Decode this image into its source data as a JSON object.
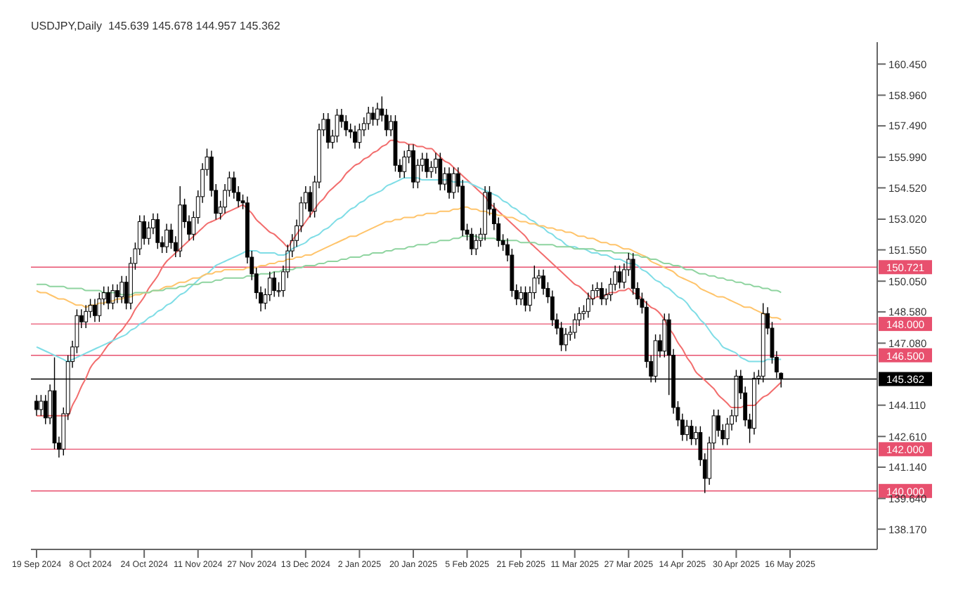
{
  "chart_data": {
    "type": "candlestick",
    "title": "USDJPY,Daily  145.639 145.678 144.957 145.362",
    "color": "#000000",
    "categories": [
      "19 Sep 2024",
      null,
      null,
      null,
      null,
      null,
      null,
      null,
      null,
      null,
      null,
      null,
      "8 Oct 2024",
      null,
      null,
      null,
      null,
      null,
      null,
      null,
      null,
      null,
      null,
      null,
      "24 Oct 2024",
      null,
      null,
      null,
      null,
      null,
      null,
      null,
      null,
      null,
      null,
      null,
      "11 Nov 2024",
      null,
      null,
      null,
      null,
      null,
      null,
      null,
      null,
      null,
      null,
      null,
      "27 Nov 2024",
      null,
      null,
      null,
      null,
      null,
      null,
      null,
      null,
      null,
      null,
      null,
      "13 Dec 2024",
      null,
      null,
      null,
      null,
      null,
      null,
      null,
      null,
      null,
      null,
      null,
      "2 Jan 2025",
      null,
      null,
      null,
      null,
      null,
      null,
      null,
      null,
      null,
      null,
      null,
      "20 Jan 2025",
      null,
      null,
      null,
      null,
      null,
      null,
      null,
      null,
      null,
      null,
      null,
      "5 Feb 2025",
      null,
      null,
      null,
      null,
      null,
      null,
      null,
      null,
      null,
      null,
      null,
      "21 Feb 2025",
      null,
      null,
      null,
      null,
      null,
      null,
      null,
      null,
      null,
      null,
      null,
      "11 Mar 2025",
      null,
      null,
      null,
      null,
      null,
      null,
      null,
      null,
      null,
      null,
      null,
      "27 Mar 2025",
      null,
      null,
      null,
      null,
      null,
      null,
      null,
      null,
      null,
      null,
      null,
      "14 Apr 2025",
      null,
      null,
      null,
      null,
      null,
      null,
      null,
      null,
      null,
      null,
      null,
      "30 Apr 2025",
      null,
      null,
      null,
      null,
      null,
      null,
      null,
      null,
      null,
      null,
      null,
      "16 May 2025"
    ],
    "ohlc": [
      [
        144.3,
        144.6,
        143.6,
        143.9
      ],
      [
        143.9,
        144.6,
        143.6,
        144.3
      ],
      [
        144.3,
        144.6,
        143.2,
        143.5
      ],
      [
        143.5,
        145.1,
        143.2,
        144.8
      ],
      [
        144.8,
        146.4,
        142.0,
        142.3
      ],
      [
        142.3,
        142.6,
        141.6,
        142.0
      ],
      [
        142.0,
        144.0,
        141.7,
        143.7
      ],
      [
        143.7,
        146.5,
        143.4,
        146.2
      ],
      [
        146.2,
        147.2,
        145.9,
        146.9
      ],
      [
        146.9,
        148.7,
        146.6,
        148.4
      ],
      [
        148.4,
        148.7,
        147.8,
        148.1
      ],
      [
        148.1,
        148.9,
        147.8,
        148.6
      ],
      [
        148.6,
        149.2,
        148.3,
        148.9
      ],
      [
        148.9,
        149.2,
        148.1,
        148.4
      ],
      [
        148.4,
        149.5,
        148.1,
        149.2
      ],
      [
        149.2,
        149.8,
        148.9,
        149.5
      ],
      [
        149.5,
        149.8,
        148.7,
        149.0
      ],
      [
        149.0,
        149.9,
        148.7,
        149.6
      ],
      [
        149.6,
        149.9,
        149.0,
        149.3
      ],
      [
        149.3,
        150.3,
        149.0,
        150.0
      ],
      [
        150.0,
        150.3,
        148.7,
        149.0
      ],
      [
        149.0,
        151.2,
        148.7,
        150.9
      ],
      [
        150.9,
        151.9,
        150.6,
        151.6
      ],
      [
        151.6,
        153.2,
        151.3,
        152.9
      ],
      [
        152.9,
        153.2,
        151.8,
        152.1
      ],
      [
        152.1,
        152.9,
        151.8,
        152.6
      ],
      [
        152.6,
        153.3,
        152.3,
        153.0
      ],
      [
        153.0,
        153.3,
        151.6,
        151.9
      ],
      [
        151.9,
        152.2,
        151.4,
        151.7
      ],
      [
        151.7,
        152.8,
        151.4,
        152.5
      ],
      [
        152.5,
        152.8,
        151.6,
        151.9
      ],
      [
        151.9,
        152.2,
        151.2,
        151.5
      ],
      [
        151.5,
        154.6,
        151.2,
        153.7
      ],
      [
        153.7,
        154.0,
        152.6,
        152.9
      ],
      [
        152.9,
        153.2,
        152.0,
        152.3
      ],
      [
        152.3,
        153.4,
        152.0,
        153.1
      ],
      [
        153.1,
        154.4,
        152.8,
        154.1
      ],
      [
        154.1,
        155.7,
        153.8,
        155.4
      ],
      [
        155.4,
        156.4,
        155.1,
        156.0
      ],
      [
        156.0,
        156.3,
        154.1,
        154.4
      ],
      [
        154.4,
        154.7,
        153.0,
        153.3
      ],
      [
        153.3,
        153.9,
        153.0,
        153.6
      ],
      [
        153.6,
        154.7,
        153.3,
        154.4
      ],
      [
        154.4,
        155.3,
        154.1,
        155.0
      ],
      [
        155.0,
        155.3,
        154.0,
        154.3
      ],
      [
        154.3,
        154.6,
        153.6,
        153.9
      ],
      [
        153.9,
        154.2,
        153.5,
        153.8
      ],
      [
        153.8,
        154.1,
        150.9,
        151.2
      ],
      [
        151.2,
        151.5,
        150.1,
        150.4
      ],
      [
        150.4,
        150.7,
        149.2,
        149.5
      ],
      [
        149.5,
        149.8,
        148.6,
        149.0
      ],
      [
        149.0,
        149.7,
        148.7,
        149.4
      ],
      [
        149.4,
        150.5,
        149.1,
        150.2
      ],
      [
        150.2,
        150.5,
        149.3,
        149.6
      ],
      [
        149.6,
        150.0,
        149.3,
        149.6
      ],
      [
        149.6,
        150.8,
        149.3,
        150.5
      ],
      [
        150.5,
        151.8,
        150.2,
        151.5
      ],
      [
        151.5,
        152.3,
        151.2,
        152.0
      ],
      [
        152.0,
        153.0,
        151.7,
        152.7
      ],
      [
        152.7,
        154.1,
        152.4,
        153.8
      ],
      [
        153.8,
        154.6,
        153.5,
        154.3
      ],
      [
        154.3,
        154.6,
        153.1,
        153.4
      ],
      [
        153.4,
        155.1,
        153.1,
        154.8
      ],
      [
        154.8,
        157.6,
        154.5,
        157.3
      ],
      [
        157.3,
        158.1,
        157.0,
        157.8
      ],
      [
        157.8,
        158.1,
        156.4,
        156.7
      ],
      [
        156.7,
        157.3,
        156.4,
        157.0
      ],
      [
        157.0,
        158.3,
        156.7,
        158.0
      ],
      [
        158.0,
        158.3,
        157.4,
        157.7
      ],
      [
        157.7,
        158.0,
        157.0,
        157.3
      ],
      [
        157.3,
        157.6,
        156.9,
        157.2
      ],
      [
        157.2,
        157.5,
        156.4,
        156.7
      ],
      [
        156.7,
        157.6,
        156.4,
        157.3
      ],
      [
        157.3,
        157.9,
        157.0,
        157.6
      ],
      [
        157.6,
        158.4,
        157.3,
        158.1
      ],
      [
        158.1,
        158.4,
        157.5,
        157.8
      ],
      [
        157.8,
        158.6,
        157.5,
        158.3
      ],
      [
        158.3,
        158.9,
        157.7,
        158.0
      ],
      [
        158.0,
        158.3,
        157.0,
        157.3
      ],
      [
        157.3,
        158.0,
        157.0,
        157.7
      ],
      [
        157.7,
        158.0,
        155.3,
        155.6
      ],
      [
        155.6,
        155.9,
        155.0,
        155.3
      ],
      [
        155.3,
        156.3,
        155.0,
        156.0
      ],
      [
        156.0,
        156.6,
        155.7,
        156.3
      ],
      [
        156.3,
        156.6,
        154.5,
        154.8
      ],
      [
        154.8,
        155.9,
        154.5,
        155.6
      ],
      [
        155.6,
        156.2,
        155.3,
        155.9
      ],
      [
        155.9,
        156.2,
        155.0,
        155.3
      ],
      [
        155.3,
        155.8,
        155.0,
        155.5
      ],
      [
        155.5,
        156.2,
        155.2,
        155.9
      ],
      [
        155.9,
        156.2,
        154.4,
        154.7
      ],
      [
        154.7,
        155.5,
        154.4,
        155.2
      ],
      [
        155.2,
        155.5,
        154.0,
        154.3
      ],
      [
        154.3,
        155.5,
        154.0,
        155.2
      ],
      [
        155.2,
        155.5,
        154.3,
        154.6
      ],
      [
        154.6,
        154.9,
        152.2,
        152.5
      ],
      [
        152.5,
        152.8,
        152.0,
        152.3
      ],
      [
        152.3,
        152.6,
        151.3,
        151.6
      ],
      [
        151.6,
        152.3,
        151.3,
        152.0
      ],
      [
        152.0,
        152.6,
        151.7,
        152.3
      ],
      [
        152.3,
        154.6,
        152.0,
        154.3
      ],
      [
        154.3,
        154.6,
        153.2,
        153.5
      ],
      [
        153.5,
        153.8,
        152.5,
        152.8
      ],
      [
        152.8,
        153.1,
        151.7,
        152.0
      ],
      [
        152.0,
        152.3,
        151.5,
        151.8
      ],
      [
        151.8,
        152.1,
        151.0,
        151.3
      ],
      [
        151.3,
        151.6,
        149.3,
        149.6
      ],
      [
        149.6,
        149.9,
        148.9,
        149.2
      ],
      [
        149.2,
        149.8,
        148.9,
        149.5
      ],
      [
        149.5,
        149.8,
        148.6,
        148.9
      ],
      [
        148.9,
        149.8,
        148.6,
        149.5
      ],
      [
        149.5,
        150.8,
        149.2,
        150.2
      ],
      [
        150.2,
        150.6,
        149.9,
        150.3
      ],
      [
        150.3,
        150.6,
        149.4,
        149.7
      ],
      [
        149.7,
        150.0,
        149.0,
        149.3
      ],
      [
        149.3,
        149.6,
        147.9,
        148.2
      ],
      [
        148.2,
        148.5,
        147.5,
        147.8
      ],
      [
        147.8,
        148.1,
        146.7,
        147.0
      ],
      [
        147.0,
        147.8,
        146.7,
        147.5
      ],
      [
        147.5,
        147.9,
        147.2,
        147.6
      ],
      [
        147.6,
        148.5,
        147.3,
        148.2
      ],
      [
        148.2,
        148.8,
        147.9,
        148.5
      ],
      [
        148.5,
        148.9,
        148.2,
        148.6
      ],
      [
        148.6,
        149.5,
        148.3,
        149.2
      ],
      [
        149.2,
        149.9,
        148.9,
        149.6
      ],
      [
        149.6,
        150.0,
        149.3,
        149.7
      ],
      [
        149.7,
        150.0,
        148.9,
        149.2
      ],
      [
        149.2,
        149.7,
        148.9,
        149.4
      ],
      [
        149.4,
        150.2,
        149.1,
        149.9
      ],
      [
        149.9,
        150.8,
        149.6,
        150.5
      ],
      [
        150.5,
        150.8,
        149.7,
        150.0
      ],
      [
        150.0,
        150.9,
        149.7,
        150.6
      ],
      [
        150.6,
        151.4,
        150.3,
        151.1
      ],
      [
        151.1,
        151.4,
        149.4,
        149.7
      ],
      [
        149.7,
        150.0,
        148.9,
        149.2
      ],
      [
        149.2,
        149.5,
        148.5,
        148.8
      ],
      [
        148.8,
        149.1,
        145.9,
        146.2
      ],
      [
        146.2,
        146.5,
        145.2,
        145.5
      ],
      [
        145.5,
        147.5,
        145.2,
        147.2
      ],
      [
        147.2,
        147.5,
        146.4,
        146.7
      ],
      [
        146.7,
        148.5,
        146.4,
        148.2
      ],
      [
        148.2,
        148.5,
        144.6,
        146.5
      ],
      [
        146.5,
        146.8,
        143.7,
        144.0
      ],
      [
        144.0,
        144.3,
        143.1,
        143.4
      ],
      [
        143.4,
        143.7,
        142.4,
        142.7
      ],
      [
        142.7,
        143.4,
        142.4,
        143.1
      ],
      [
        143.1,
        143.4,
        142.2,
        142.5
      ],
      [
        142.5,
        143.1,
        142.2,
        142.8
      ],
      [
        142.8,
        143.1,
        141.2,
        141.5
      ],
      [
        141.5,
        141.8,
        139.9,
        140.6
      ],
      [
        140.6,
        142.6,
        140.3,
        142.3
      ],
      [
        142.3,
        143.9,
        142.0,
        143.6
      ],
      [
        143.6,
        143.9,
        142.6,
        142.9
      ],
      [
        142.9,
        143.2,
        142.2,
        142.5
      ],
      [
        142.5,
        143.5,
        142.2,
        143.2
      ],
      [
        143.2,
        143.9,
        142.9,
        143.6
      ],
      [
        143.6,
        145.8,
        143.3,
        145.5
      ],
      [
        145.5,
        145.8,
        144.4,
        144.7
      ],
      [
        144.7,
        145.0,
        143.1,
        143.4
      ],
      [
        143.4,
        143.7,
        142.3,
        143.0
      ],
      [
        143.0,
        145.7,
        142.7,
        145.4
      ],
      [
        145.4,
        145.8,
        145.1,
        145.5
      ],
      [
        145.5,
        149.0,
        145.2,
        148.5
      ],
      [
        148.5,
        148.8,
        147.5,
        147.8
      ],
      [
        147.8,
        148.1,
        146.1,
        146.4
      ],
      [
        146.4,
        146.7,
        145.4,
        145.7
      ],
      [
        145.639,
        145.678,
        144.957,
        145.362
      ],
      null,
      null
    ],
    "series": [
      {
        "type": "line",
        "color": "#f26d6d",
        "values": [
          143.6,
          143.6,
          143.6,
          143.6,
          143.6,
          143.6,
          143.6,
          143.6,
          144.1,
          144.5,
          145.0,
          145.4,
          145.9,
          146.2,
          146.4,
          146.7,
          147.0,
          147.2,
          147.5,
          147.7,
          148.0,
          148.3,
          148.7,
          149.0,
          149.3,
          149.7,
          150.0,
          150.3,
          150.7,
          151.0,
          151.2,
          151.4,
          151.6,
          151.8,
          152.0,
          152.2,
          152.4,
          152.6,
          152.8,
          152.9,
          153.0,
          153.1,
          153.3,
          153.4,
          153.5,
          153.6,
          153.7,
          153.5,
          153.3,
          153.0,
          152.8,
          152.6,
          152.4,
          152.3,
          152.1,
          151.9,
          151.7,
          152.0,
          152.3,
          152.6,
          152.9,
          153.2,
          153.5,
          153.8,
          154.0,
          154.3,
          154.5,
          154.7,
          154.9,
          155.2,
          155.4,
          155.6,
          155.7,
          155.9,
          156.0,
          156.2,
          156.3,
          156.5,
          156.6,
          156.8,
          156.8,
          156.7,
          156.7,
          156.6,
          156.6,
          156.5,
          156.5,
          156.4,
          156.4,
          156.2,
          156.0,
          155.8,
          155.7,
          155.5,
          155.3,
          155.1,
          154.9,
          154.7,
          154.5,
          154.3,
          154.1,
          153.8,
          153.6,
          153.4,
          153.2,
          153.0,
          152.8,
          152.6,
          152.4,
          152.2,
          151.9,
          151.7,
          151.5,
          151.3,
          151.1,
          150.9,
          150.7,
          150.5,
          150.3,
          150.1,
          149.9,
          149.8,
          149.6,
          149.4,
          149.2,
          149.3,
          149.3,
          149.4,
          149.5,
          149.5,
          149.6,
          149.6,
          149.7,
          149.5,
          149.4,
          149.2,
          149.0,
          148.8,
          148.7,
          148.5,
          148.2,
          147.8,
          147.5,
          147.1,
          146.8,
          146.4,
          146.1,
          145.7,
          145.5,
          145.3,
          145.1,
          144.9,
          144.6,
          144.4,
          144.2,
          144.0,
          144.0,
          144.0,
          144.1,
          144.1,
          144.1,
          144.3,
          144.5,
          144.6,
          144.8,
          145.0,
          145.2,
          null,
          null
        ]
      },
      {
        "type": "line",
        "color": "#7fdde6",
        "values": [
          146.9,
          146.8,
          146.7,
          146.6,
          146.5,
          146.4,
          146.3,
          146.2,
          146.3,
          146.4,
          146.5,
          146.6,
          146.7,
          146.8,
          146.9,
          147.0,
          147.1,
          147.2,
          147.3,
          147.4,
          147.5,
          147.7,
          147.8,
          148.0,
          148.1,
          148.3,
          148.4,
          148.6,
          148.7,
          148.9,
          149.0,
          149.2,
          149.4,
          149.5,
          149.7,
          149.9,
          150.1,
          150.3,
          150.4,
          150.6,
          150.8,
          150.9,
          151.0,
          151.1,
          151.2,
          151.3,
          151.4,
          151.5,
          151.5,
          151.5,
          151.4,
          151.4,
          151.4,
          151.4,
          151.3,
          151.3,
          151.4,
          151.6,
          151.7,
          151.8,
          151.9,
          152.1,
          152.2,
          152.3,
          152.5,
          152.6,
          152.8,
          153.0,
          153.1,
          153.3,
          153.5,
          153.6,
          153.8,
          153.9,
          154.1,
          154.2,
          154.3,
          154.4,
          154.6,
          154.7,
          154.8,
          154.9,
          155.0,
          155.0,
          155.0,
          155.0,
          154.9,
          154.9,
          154.9,
          154.9,
          154.9,
          154.9,
          154.9,
          154.8,
          154.8,
          154.8,
          154.8,
          154.7,
          154.6,
          154.5,
          154.4,
          154.3,
          154.2,
          154.1,
          153.9,
          153.8,
          153.6,
          153.5,
          153.3,
          153.2,
          153.0,
          152.9,
          152.7,
          152.6,
          152.4,
          152.3,
          152.1,
          152.0,
          151.8,
          151.7,
          151.7,
          151.6,
          151.6,
          151.5,
          151.4,
          151.4,
          151.3,
          151.3,
          151.2,
          151.1,
          151.1,
          151.0,
          150.9,
          150.9,
          150.8,
          150.6,
          150.5,
          150.3,
          150.1,
          150.0,
          149.8,
          149.7,
          149.5,
          149.3,
          149.2,
          149.0,
          148.7,
          148.5,
          148.2,
          148.0,
          147.7,
          147.4,
          147.2,
          146.9,
          146.8,
          146.7,
          146.6,
          146.4,
          146.3,
          146.2,
          146.2,
          146.2,
          146.2,
          146.3,
          146.3,
          146.3,
          146.3,
          null,
          null
        ]
      },
      {
        "type": "line",
        "color": "#ffc46b",
        "values": [
          149.6,
          149.5,
          149.5,
          149.4,
          149.3,
          149.2,
          149.2,
          149.1,
          149.0,
          148.9,
          148.9,
          148.8,
          148.9,
          148.9,
          149.0,
          149.0,
          149.1,
          149.1,
          149.2,
          149.2,
          149.3,
          149.3,
          149.4,
          149.4,
          149.5,
          149.5,
          149.6,
          149.6,
          149.7,
          149.8,
          149.8,
          149.9,
          150.0,
          150.0,
          150.1,
          150.2,
          150.2,
          150.3,
          150.4,
          150.4,
          150.5,
          150.5,
          150.6,
          150.6,
          150.6,
          150.6,
          150.6,
          150.7,
          150.7,
          150.7,
          150.8,
          150.8,
          150.9,
          150.9,
          151.0,
          151.0,
          151.1,
          151.1,
          151.2,
          151.2,
          151.3,
          151.3,
          151.4,
          151.5,
          151.6,
          151.7,
          151.8,
          151.9,
          152.0,
          152.1,
          152.2,
          152.2,
          152.3,
          152.4,
          152.5,
          152.6,
          152.7,
          152.8,
          152.9,
          152.9,
          153.0,
          153.0,
          153.1,
          153.1,
          153.1,
          153.2,
          153.2,
          153.3,
          153.3,
          153.3,
          153.4,
          153.4,
          153.4,
          153.5,
          153.5,
          153.6,
          153.6,
          153.5,
          153.5,
          153.4,
          153.4,
          153.3,
          153.3,
          153.2,
          153.2,
          153.1,
          153.1,
          153.0,
          152.9,
          152.9,
          152.8,
          152.8,
          152.7,
          152.7,
          152.6,
          152.6,
          152.5,
          152.5,
          152.4,
          152.4,
          152.3,
          152.2,
          152.2,
          152.1,
          152.1,
          152.0,
          151.9,
          151.9,
          151.8,
          151.8,
          151.7,
          151.6,
          151.6,
          151.5,
          151.4,
          151.3,
          151.2,
          151.0,
          150.9,
          150.8,
          150.7,
          150.6,
          150.5,
          150.3,
          150.2,
          150.1,
          150.0,
          149.9,
          149.7,
          149.6,
          149.5,
          149.4,
          149.3,
          149.3,
          149.2,
          149.1,
          149.0,
          148.9,
          148.8,
          148.8,
          148.7,
          148.6,
          148.5,
          148.4,
          148.3,
          148.3,
          148.2,
          null,
          null
        ]
      },
      {
        "type": "line",
        "color": "#8fd4a0",
        "values": [
          149.9,
          149.9,
          149.9,
          149.8,
          149.8,
          149.8,
          149.8,
          149.7,
          149.7,
          149.7,
          149.7,
          149.6,
          149.6,
          149.6,
          149.6,
          149.5,
          149.5,
          149.5,
          149.5,
          149.4,
          149.4,
          149.4,
          149.5,
          149.5,
          149.5,
          149.5,
          149.6,
          149.6,
          149.6,
          149.7,
          149.7,
          149.7,
          149.8,
          149.8,
          149.9,
          149.9,
          149.9,
          150.0,
          150.0,
          150.0,
          150.1,
          150.1,
          150.2,
          150.2,
          150.2,
          150.2,
          150.2,
          150.3,
          150.3,
          150.3,
          150.4,
          150.4,
          150.4,
          150.5,
          150.5,
          150.6,
          150.6,
          150.6,
          150.7,
          150.7,
          150.8,
          150.8,
          150.8,
          150.9,
          150.9,
          151.0,
          151.0,
          151.0,
          151.1,
          151.1,
          151.2,
          151.2,
          151.2,
          151.3,
          151.3,
          151.4,
          151.4,
          151.4,
          151.5,
          151.5,
          151.6,
          151.6,
          151.6,
          151.7,
          151.7,
          151.8,
          151.8,
          151.8,
          151.9,
          151.9,
          152.0,
          152.0,
          152.0,
          152.1,
          152.1,
          152.2,
          152.2,
          152.2,
          152.2,
          152.1,
          152.1,
          152.1,
          152.1,
          152.0,
          152.0,
          152.0,
          152.0,
          152.0,
          151.9,
          151.9,
          151.9,
          151.9,
          151.8,
          151.8,
          151.8,
          151.8,
          151.7,
          151.7,
          151.7,
          151.7,
          151.6,
          151.6,
          151.6,
          151.6,
          151.6,
          151.5,
          151.5,
          151.5,
          151.5,
          151.4,
          151.4,
          151.4,
          151.4,
          151.3,
          151.3,
          151.2,
          151.2,
          151.1,
          151.1,
          151.0,
          150.9,
          150.9,
          150.8,
          150.8,
          150.7,
          150.6,
          150.6,
          150.5,
          150.4,
          150.4,
          150.3,
          150.3,
          150.2,
          150.2,
          150.1,
          150.1,
          150.0,
          150.0,
          149.9,
          149.9,
          149.8,
          149.8,
          149.7,
          149.7,
          149.6,
          149.6,
          149.5,
          null,
          null
        ]
      }
    ],
    "ylim": [
      137.2,
      161.5
    ],
    "yticks": [
      {
        "value": 160.45,
        "label": "160.450"
      },
      {
        "value": 158.96,
        "label": "158.960"
      },
      {
        "value": 157.49,
        "label": "157.490"
      },
      {
        "value": 155.99,
        "label": "155.990"
      },
      {
        "value": 154.52,
        "label": "154.520"
      },
      {
        "value": 153.02,
        "label": "153.020"
      },
      {
        "value": 151.55,
        "label": "151.550"
      },
      {
        "value": 150.05,
        "label": "150.050"
      },
      {
        "value": 148.58,
        "label": "148.580"
      },
      {
        "value": 147.08,
        "label": "147.080"
      },
      {
        "value": 144.11,
        "label": "144.110"
      },
      {
        "value": 142.61,
        "label": "142.610"
      },
      {
        "value": 141.14,
        "label": "141.140"
      },
      {
        "value": 139.64,
        "label": "139.640"
      },
      {
        "value": 138.17,
        "label": "138.170"
      }
    ],
    "ref_lines": [
      {
        "axis": "y",
        "value": 150.721,
        "label": "150.721",
        "color": "#e8506e"
      },
      {
        "axis": "y",
        "value": 148.0,
        "label": "148.000",
        "color": "#e8506e"
      },
      {
        "axis": "y",
        "value": 146.5,
        "label": "146.500",
        "color": "#e8506e"
      },
      {
        "axis": "y",
        "value": 145.362,
        "label": "145.362",
        "color": "#000000"
      },
      {
        "axis": "y",
        "value": 142.0,
        "label": "142.000",
        "color": "#e8506e"
      },
      {
        "axis": "y",
        "value": 140.0,
        "label": "140.000",
        "color": "#e8506e"
      }
    ]
  }
}
